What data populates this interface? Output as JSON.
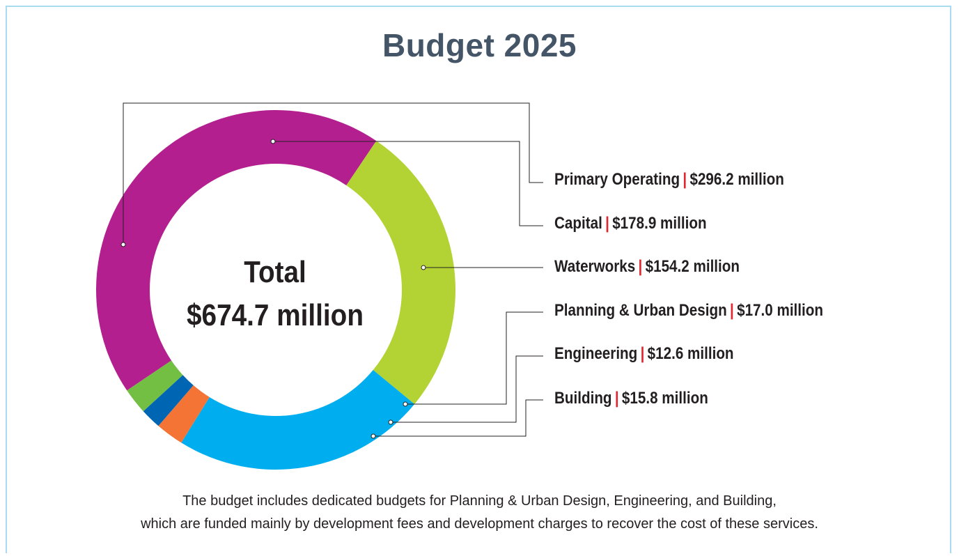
{
  "title": "Budget 2025",
  "center": {
    "line1": "Total",
    "line2": "$674.7 million"
  },
  "footnote": {
    "line1": "The budget includes dedicated budgets for Planning & Urban Design, Engineering, and Building,",
    "line2": "which are funded mainly by development fees and development charges to recover the cost of these services."
  },
  "colors": {
    "title": "#445567",
    "separator": "#e0262e",
    "border": "#a9dbf0"
  },
  "chart_data": {
    "type": "pie",
    "donut": true,
    "total": 674.7,
    "unit": "$ million",
    "series": [
      {
        "name": "Primary Operating",
        "value": 296.2,
        "label": "$296.2 million",
        "color": "#b41f8f"
      },
      {
        "name": "Capital",
        "value": 178.9,
        "label": "$178.9 million",
        "color": "#b3d334"
      },
      {
        "name": "Waterworks",
        "value": 154.2,
        "label": "$154.2 million",
        "color": "#00aeef"
      },
      {
        "name": "Planning & Urban Design",
        "value": 17.0,
        "label": "$17.0 million",
        "color": "#f37435"
      },
      {
        "name": "Engineering",
        "value": 12.6,
        "label": "$12.6 million",
        "color": "#0066b3"
      },
      {
        "name": "Building",
        "value": 15.8,
        "label": "$15.8 million",
        "color": "#72bf44"
      }
    ]
  }
}
